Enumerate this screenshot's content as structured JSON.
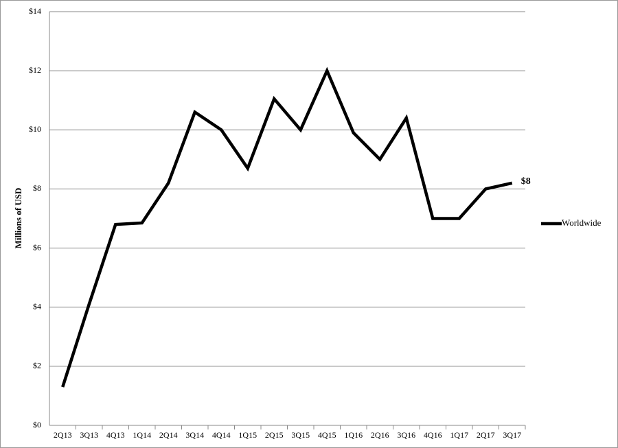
{
  "chart_data": {
    "type": "line",
    "y_label": "Millions of USD",
    "categories": [
      "2Q13",
      "3Q13",
      "4Q13",
      "1Q14",
      "2Q14",
      "3Q14",
      "4Q14",
      "1Q15",
      "2Q15",
      "3Q15",
      "4Q15",
      "1Q16",
      "2Q16",
      "3Q16",
      "4Q16",
      "1Q17",
      "2Q17",
      "3Q17"
    ],
    "series": [
      {
        "name": "Worldwide",
        "color": "#000000",
        "values": [
          1.3,
          4.1,
          6.8,
          6.85,
          8.2,
          10.6,
          10.0,
          8.7,
          11.05,
          10.0,
          12.0,
          9.9,
          9.0,
          10.4,
          7.0,
          7.0,
          8.0,
          8.2
        ],
        "value_labels": [
          null,
          null,
          null,
          null,
          null,
          null,
          null,
          null,
          null,
          null,
          null,
          null,
          null,
          null,
          null,
          null,
          null,
          "$8"
        ]
      }
    ],
    "ylim": [
      0,
      14
    ],
    "yticks": [
      {
        "value": 0,
        "label": "$0"
      },
      {
        "value": 2,
        "label": "$2"
      },
      {
        "value": 4,
        "label": "$4"
      },
      {
        "value": 6,
        "label": "$6"
      },
      {
        "value": 8,
        "label": "$8"
      },
      {
        "value": 10,
        "label": "$10"
      },
      {
        "value": 12,
        "label": "$12"
      },
      {
        "value": 14,
        "label": "$14"
      }
    ],
    "grid": true,
    "legend": "right"
  }
}
